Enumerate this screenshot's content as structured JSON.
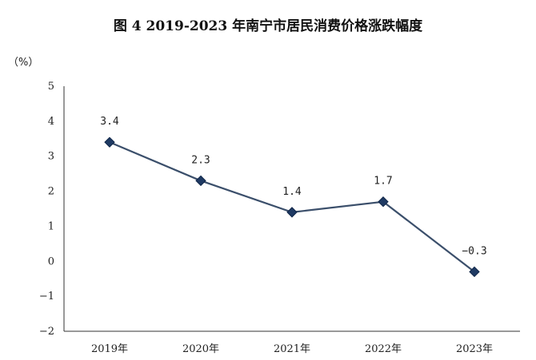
{
  "chart_data": {
    "type": "line",
    "title": "图 4    2019-2023 年南宁市居民消费价格涨跌幅度",
    "y_unit": "（%）",
    "categories": [
      "2019年",
      "2020年",
      "2021年",
      "2022年",
      "2023年"
    ],
    "series": [
      {
        "values": [
          3.4,
          2.3,
          1.4,
          1.7,
          -0.3
        ],
        "labels": [
          "3.4",
          "2.3",
          "1.4",
          "1.7",
          "−0.3"
        ]
      }
    ],
    "ylim": [
      -2,
      5
    ],
    "yticks": [
      "5",
      "4",
      "3",
      "2",
      "1",
      "0",
      "−1",
      "−2"
    ],
    "ytick_values": [
      5,
      4,
      3,
      2,
      1,
      0,
      -1,
      -2
    ],
    "grid": false,
    "colors": {
      "line": "#3b4f6b",
      "marker": "#1f3a63",
      "axis": "#333333"
    }
  }
}
